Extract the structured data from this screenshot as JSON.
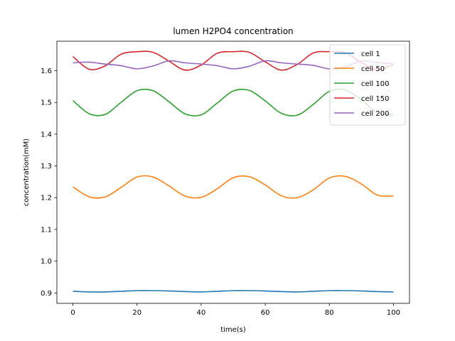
{
  "chart_data": {
    "type": "line",
    "title": "lumen H2PO4 concentration",
    "xlabel": "time(s)",
    "ylabel": "concentration(mM)",
    "xlim": [
      -5,
      105
    ],
    "ylim": [
      0.867,
      1.693
    ],
    "xticks": [
      0,
      20,
      40,
      60,
      80,
      100
    ],
    "yticks": [
      0.9,
      1.0,
      1.1,
      1.2,
      1.3,
      1.4,
      1.5,
      1.6
    ],
    "ytick_labels": [
      "0.9",
      "1.0",
      "1.1",
      "1.2",
      "1.3",
      "1.4",
      "1.5",
      "1.6"
    ],
    "grid": false,
    "legend_position": "top-right",
    "x": [
      0,
      5,
      10,
      15,
      20,
      25,
      30,
      35,
      40,
      45,
      50,
      55,
      60,
      65,
      70,
      75,
      80,
      85,
      90,
      95,
      100
    ],
    "series": [
      {
        "name": "cell 1",
        "color": "#1f77b4",
        "values": [
          0.905,
          0.903,
          0.903,
          0.905,
          0.907,
          0.907,
          0.906,
          0.904,
          0.903,
          0.905,
          0.907,
          0.907,
          0.906,
          0.904,
          0.903,
          0.905,
          0.907,
          0.907,
          0.906,
          0.904,
          0.903
        ]
      },
      {
        "name": "cell 50",
        "color": "#ff7f0e",
        "values": [
          1.234,
          1.203,
          1.202,
          1.232,
          1.265,
          1.265,
          1.237,
          1.205,
          1.201,
          1.228,
          1.263,
          1.266,
          1.24,
          1.206,
          1.2,
          1.225,
          1.262,
          1.267,
          1.243,
          1.208,
          1.205
        ]
      },
      {
        "name": "cell 100",
        "color": "#2ca02c",
        "values": [
          1.506,
          1.465,
          1.462,
          1.5,
          1.537,
          1.537,
          1.502,
          1.464,
          1.461,
          1.498,
          1.536,
          1.538,
          1.505,
          1.466,
          1.46,
          1.494,
          1.535,
          1.539,
          1.508,
          1.468,
          1.461
        ]
      },
      {
        "name": "cell 150",
        "color": "#d62728",
        "values": [
          1.645,
          1.605,
          1.615,
          1.652,
          1.66,
          1.658,
          1.63,
          1.602,
          1.618,
          1.655,
          1.66,
          1.658,
          1.628,
          1.602,
          1.62,
          1.656,
          1.66,
          1.657,
          1.626,
          1.603,
          1.62
        ]
      },
      {
        "name": "cell 200",
        "color": "#9467bd",
        "values": [
          1.625,
          1.627,
          1.621,
          1.616,
          1.606,
          1.615,
          1.631,
          1.625,
          1.621,
          1.616,
          1.606,
          1.614,
          1.631,
          1.625,
          1.621,
          1.617,
          1.606,
          1.612,
          1.631,
          1.626,
          1.622
        ]
      }
    ]
  }
}
